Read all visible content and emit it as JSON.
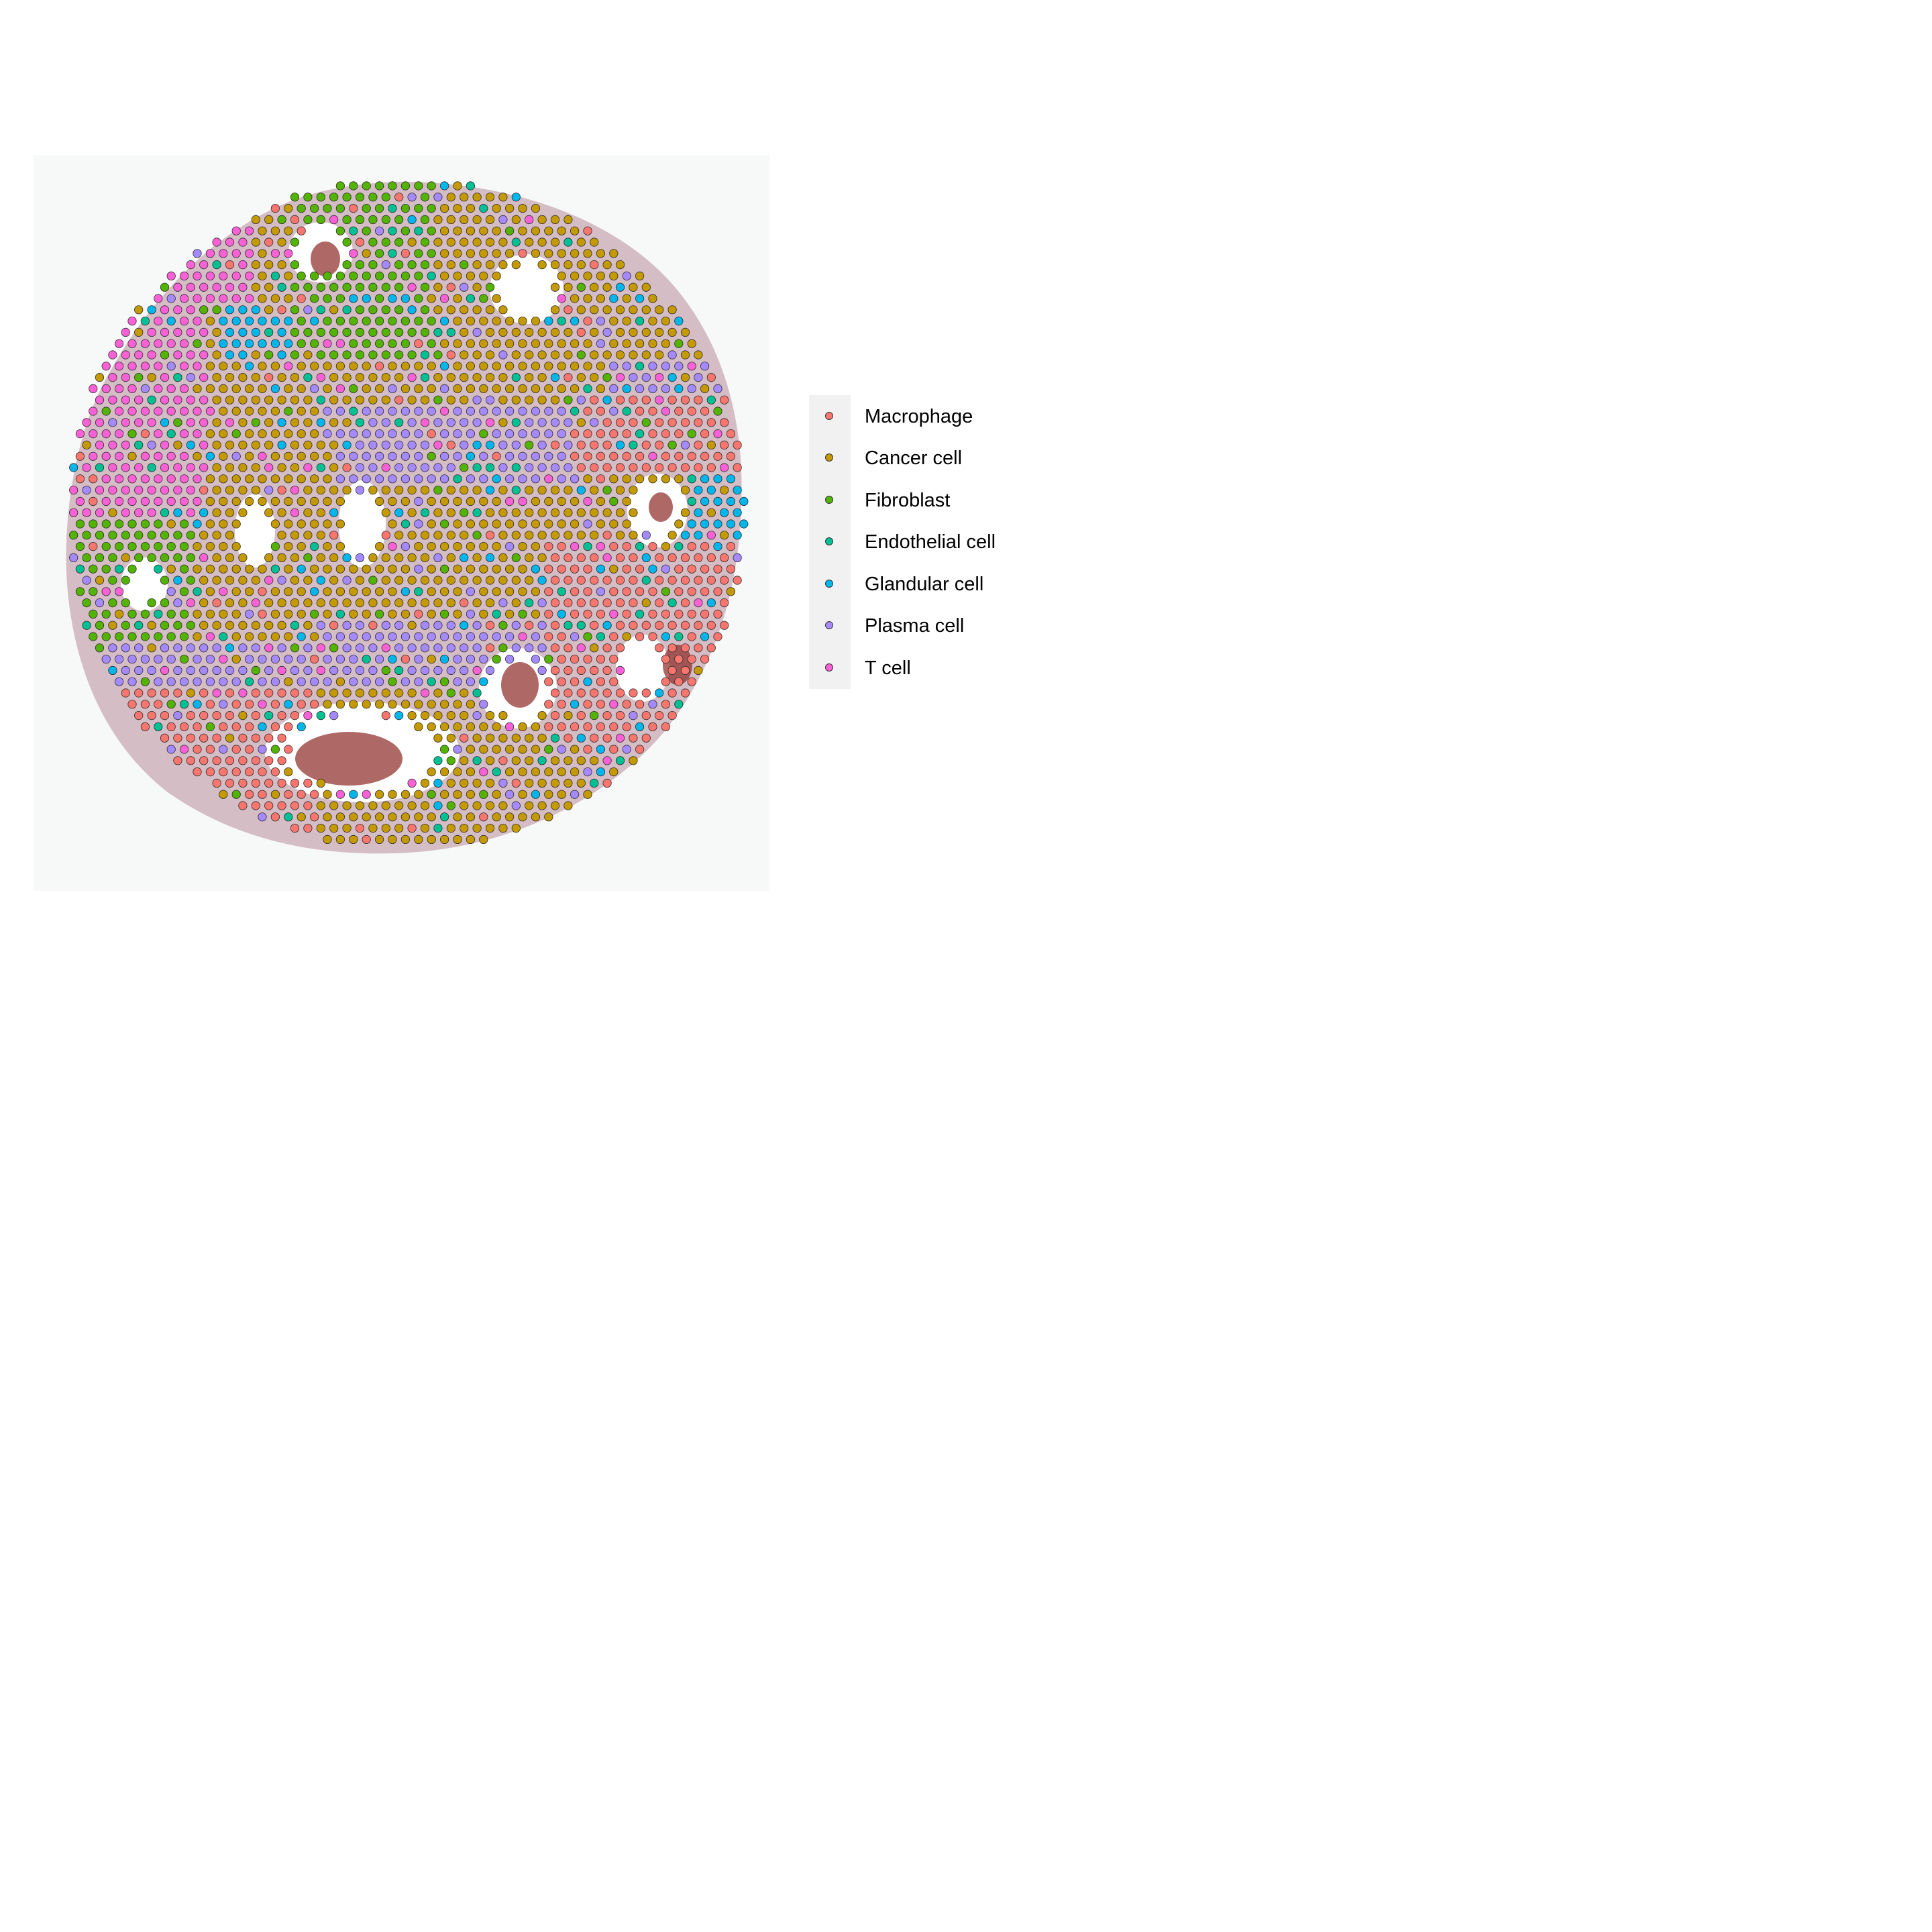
{
  "legend": {
    "items": [
      {
        "label": "Macrophage",
        "color": "#F8766D"
      },
      {
        "label": "Cancer cell",
        "color": "#C49A00"
      },
      {
        "label": "Fibroblast",
        "color": "#53B400"
      },
      {
        "label": "Endothelial cell",
        "color": "#00C094"
      },
      {
        "label": "Glandular cell",
        "color": "#00B6EB"
      },
      {
        "label": "Plasma cell",
        "color": "#A58AFF"
      },
      {
        "label": "T cell",
        "color": "#FB61D7"
      }
    ]
  },
  "colors": {
    "tissue_stain": "#b98c9c",
    "lumen_debris": "#8b2a25",
    "spot_outline": "#2b2b2b"
  },
  "image_description_kind": "spatial transcriptomics spots colored by cell type over H&E tissue section"
}
